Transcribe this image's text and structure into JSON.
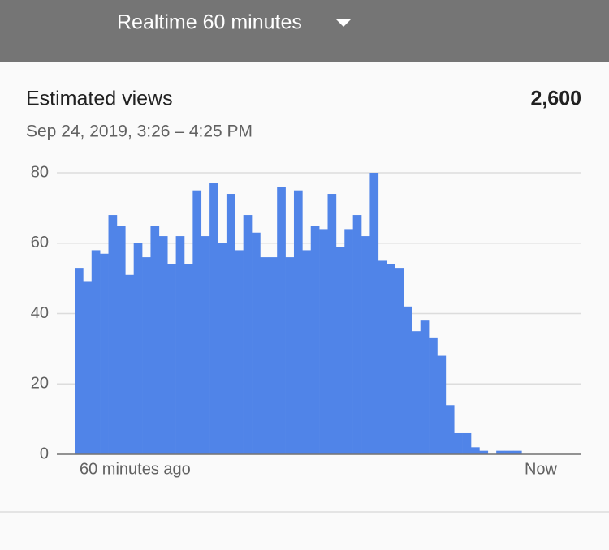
{
  "header": {
    "title": "Realtime 60 minutes"
  },
  "card": {
    "label": "Estimated views",
    "total": "2,600",
    "period": "Sep 24, 2019, 3:26 – 4:25 PM"
  },
  "chart_data": {
    "type": "bar",
    "color": "#5084e8",
    "x_labels": [
      "60 minutes ago",
      "Now"
    ],
    "values": [
      53,
      49,
      58,
      57,
      68,
      65,
      51,
      60,
      56,
      65,
      62,
      54,
      62,
      54,
      75,
      62,
      77,
      60,
      74,
      58,
      68,
      63,
      56,
      56,
      76,
      56,
      75,
      58,
      65,
      64,
      74,
      59,
      64,
      68,
      62,
      80,
      55,
      54,
      53,
      42,
      35,
      38,
      33,
      28,
      14,
      6,
      6,
      2,
      1,
      0,
      1,
      1,
      1,
      0,
      0,
      0,
      0,
      0,
      0,
      0
    ],
    "ylim": [
      0,
      80
    ],
    "yticks": [
      0,
      20,
      40,
      60,
      80
    ],
    "grid": true
  }
}
